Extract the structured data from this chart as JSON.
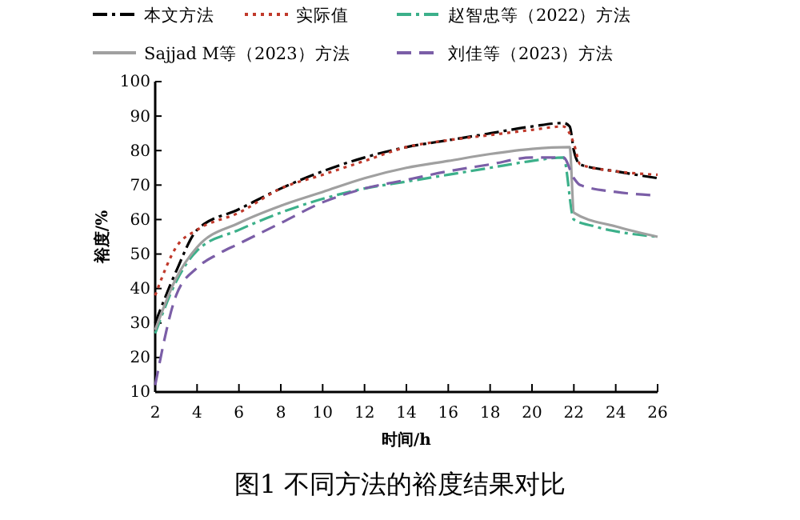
{
  "chart_data": {
    "type": "line",
    "title": "图1   不同方法的裕度结果对比",
    "xlabel": "时间/h",
    "ylabel": "裕度/%",
    "xlim": [
      2,
      26
    ],
    "xticks": [
      2,
      4,
      6,
      8,
      10,
      12,
      14,
      16,
      18,
      20,
      22,
      24,
      26
    ],
    "ylim": [
      10,
      100
    ],
    "yticks": [
      10,
      20,
      30,
      40,
      50,
      60,
      70,
      80,
      90,
      100
    ],
    "legend": "top",
    "grid": false,
    "marker": "none",
    "series": [
      {
        "name": "本文方法",
        "color": "#000000",
        "line_style": "dashdot",
        "x": [
          2,
          3,
          4,
          6,
          8,
          10,
          12,
          14,
          16,
          18,
          20,
          21.5,
          21.8,
          22,
          22.3,
          24,
          26
        ],
        "values": [
          30,
          45,
          57,
          63,
          69,
          74,
          78,
          81,
          83,
          85,
          87,
          88,
          87,
          80,
          76,
          74,
          72
        ]
      },
      {
        "name": "实际值",
        "color": "#c0392b",
        "line_style": "dotted",
        "x": [
          2,
          3,
          4,
          6,
          8,
          10,
          12,
          14,
          16,
          18,
          20,
          21.5,
          22,
          22.3,
          24,
          26
        ],
        "values": [
          38,
          52,
          57,
          62,
          69,
          73,
          77,
          81,
          83,
          84.5,
          86,
          87,
          82,
          76,
          74,
          73
        ]
      },
      {
        "name": "赵智忠等（2022）方法",
        "color": "#3cb08a",
        "line_style": "dashdot",
        "x": [
          2,
          3,
          4,
          6,
          8,
          10,
          12,
          14,
          16,
          18,
          20,
          21.5,
          22,
          23,
          26
        ],
        "values": [
          27,
          42,
          51,
          57,
          62,
          66,
          69,
          71,
          73,
          75,
          77,
          78,
          60,
          58,
          55
        ]
      },
      {
        "name": "Sajjad M等（2023）方法",
        "color": "#a0a0a0",
        "line_style": "solid",
        "x": [
          2,
          3,
          4,
          6,
          8,
          10,
          12,
          14,
          16,
          18,
          20,
          21.8,
          22,
          24,
          26
        ],
        "values": [
          28,
          43,
          52,
          59,
          64,
          68,
          72,
          75,
          77,
          79,
          80.5,
          81,
          62,
          58,
          55
        ]
      },
      {
        "name": "刘佳等（2023）方法",
        "color": "#7b5ea7",
        "line_style": "dashed",
        "x": [
          2,
          3,
          4,
          5,
          6,
          8,
          10,
          12,
          14,
          16,
          18,
          20,
          21.5,
          22,
          22.3,
          24,
          26
        ],
        "values": [
          12,
          38,
          46,
          50,
          53,
          59,
          65,
          69,
          71.5,
          74,
          76,
          78,
          78,
          72,
          70,
          68,
          67
        ]
      }
    ]
  }
}
